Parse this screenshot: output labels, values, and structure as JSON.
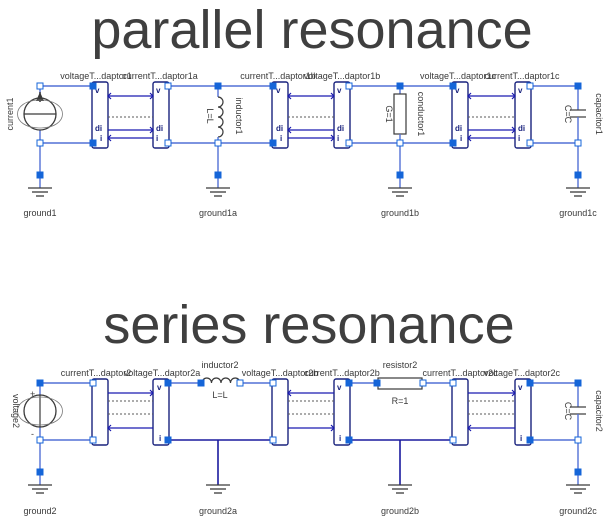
{
  "titles": {
    "parallel": "parallel resonance",
    "series": "series resonance"
  },
  "parallel": {
    "source_label": "current1",
    "ground_labels": [
      "ground1",
      "ground1a",
      "ground1b",
      "ground1c"
    ],
    "adaptor_labels": [
      "voltageT...daptor1",
      "currentT...daptor1a",
      "currentT...daptor1b",
      "voltageT...daptor1b",
      "voltageT...daptor1c",
      "currentT...daptor1c"
    ],
    "inductor": {
      "name": "inductor1",
      "param": "L=L"
    },
    "conductor": {
      "name": "conductor1",
      "param": "G=1"
    },
    "capacitor": {
      "name": "capacitor1",
      "param": "C=C"
    }
  },
  "series": {
    "source_label": "voltage2",
    "ground_labels": [
      "ground2",
      "ground2a",
      "ground2b",
      "ground2c"
    ],
    "adaptor_labels": [
      "currentT...daptor2",
      "voltageT...daptor2a",
      "voltageT...daptor2b",
      "currentT...daptor2b",
      "currentT...daptor2c",
      "voltageT...daptor2c"
    ],
    "inductor": {
      "name": "inductor2",
      "param": "L=L"
    },
    "resistor": {
      "name": "resistor2",
      "param": "R=1"
    },
    "capacitor": {
      "name": "capacitor2",
      "param": "C=C"
    }
  },
  "pin_labels": {
    "v": "v",
    "i": "i",
    "di": "di",
    "plus": "+",
    "minus": "-"
  }
}
